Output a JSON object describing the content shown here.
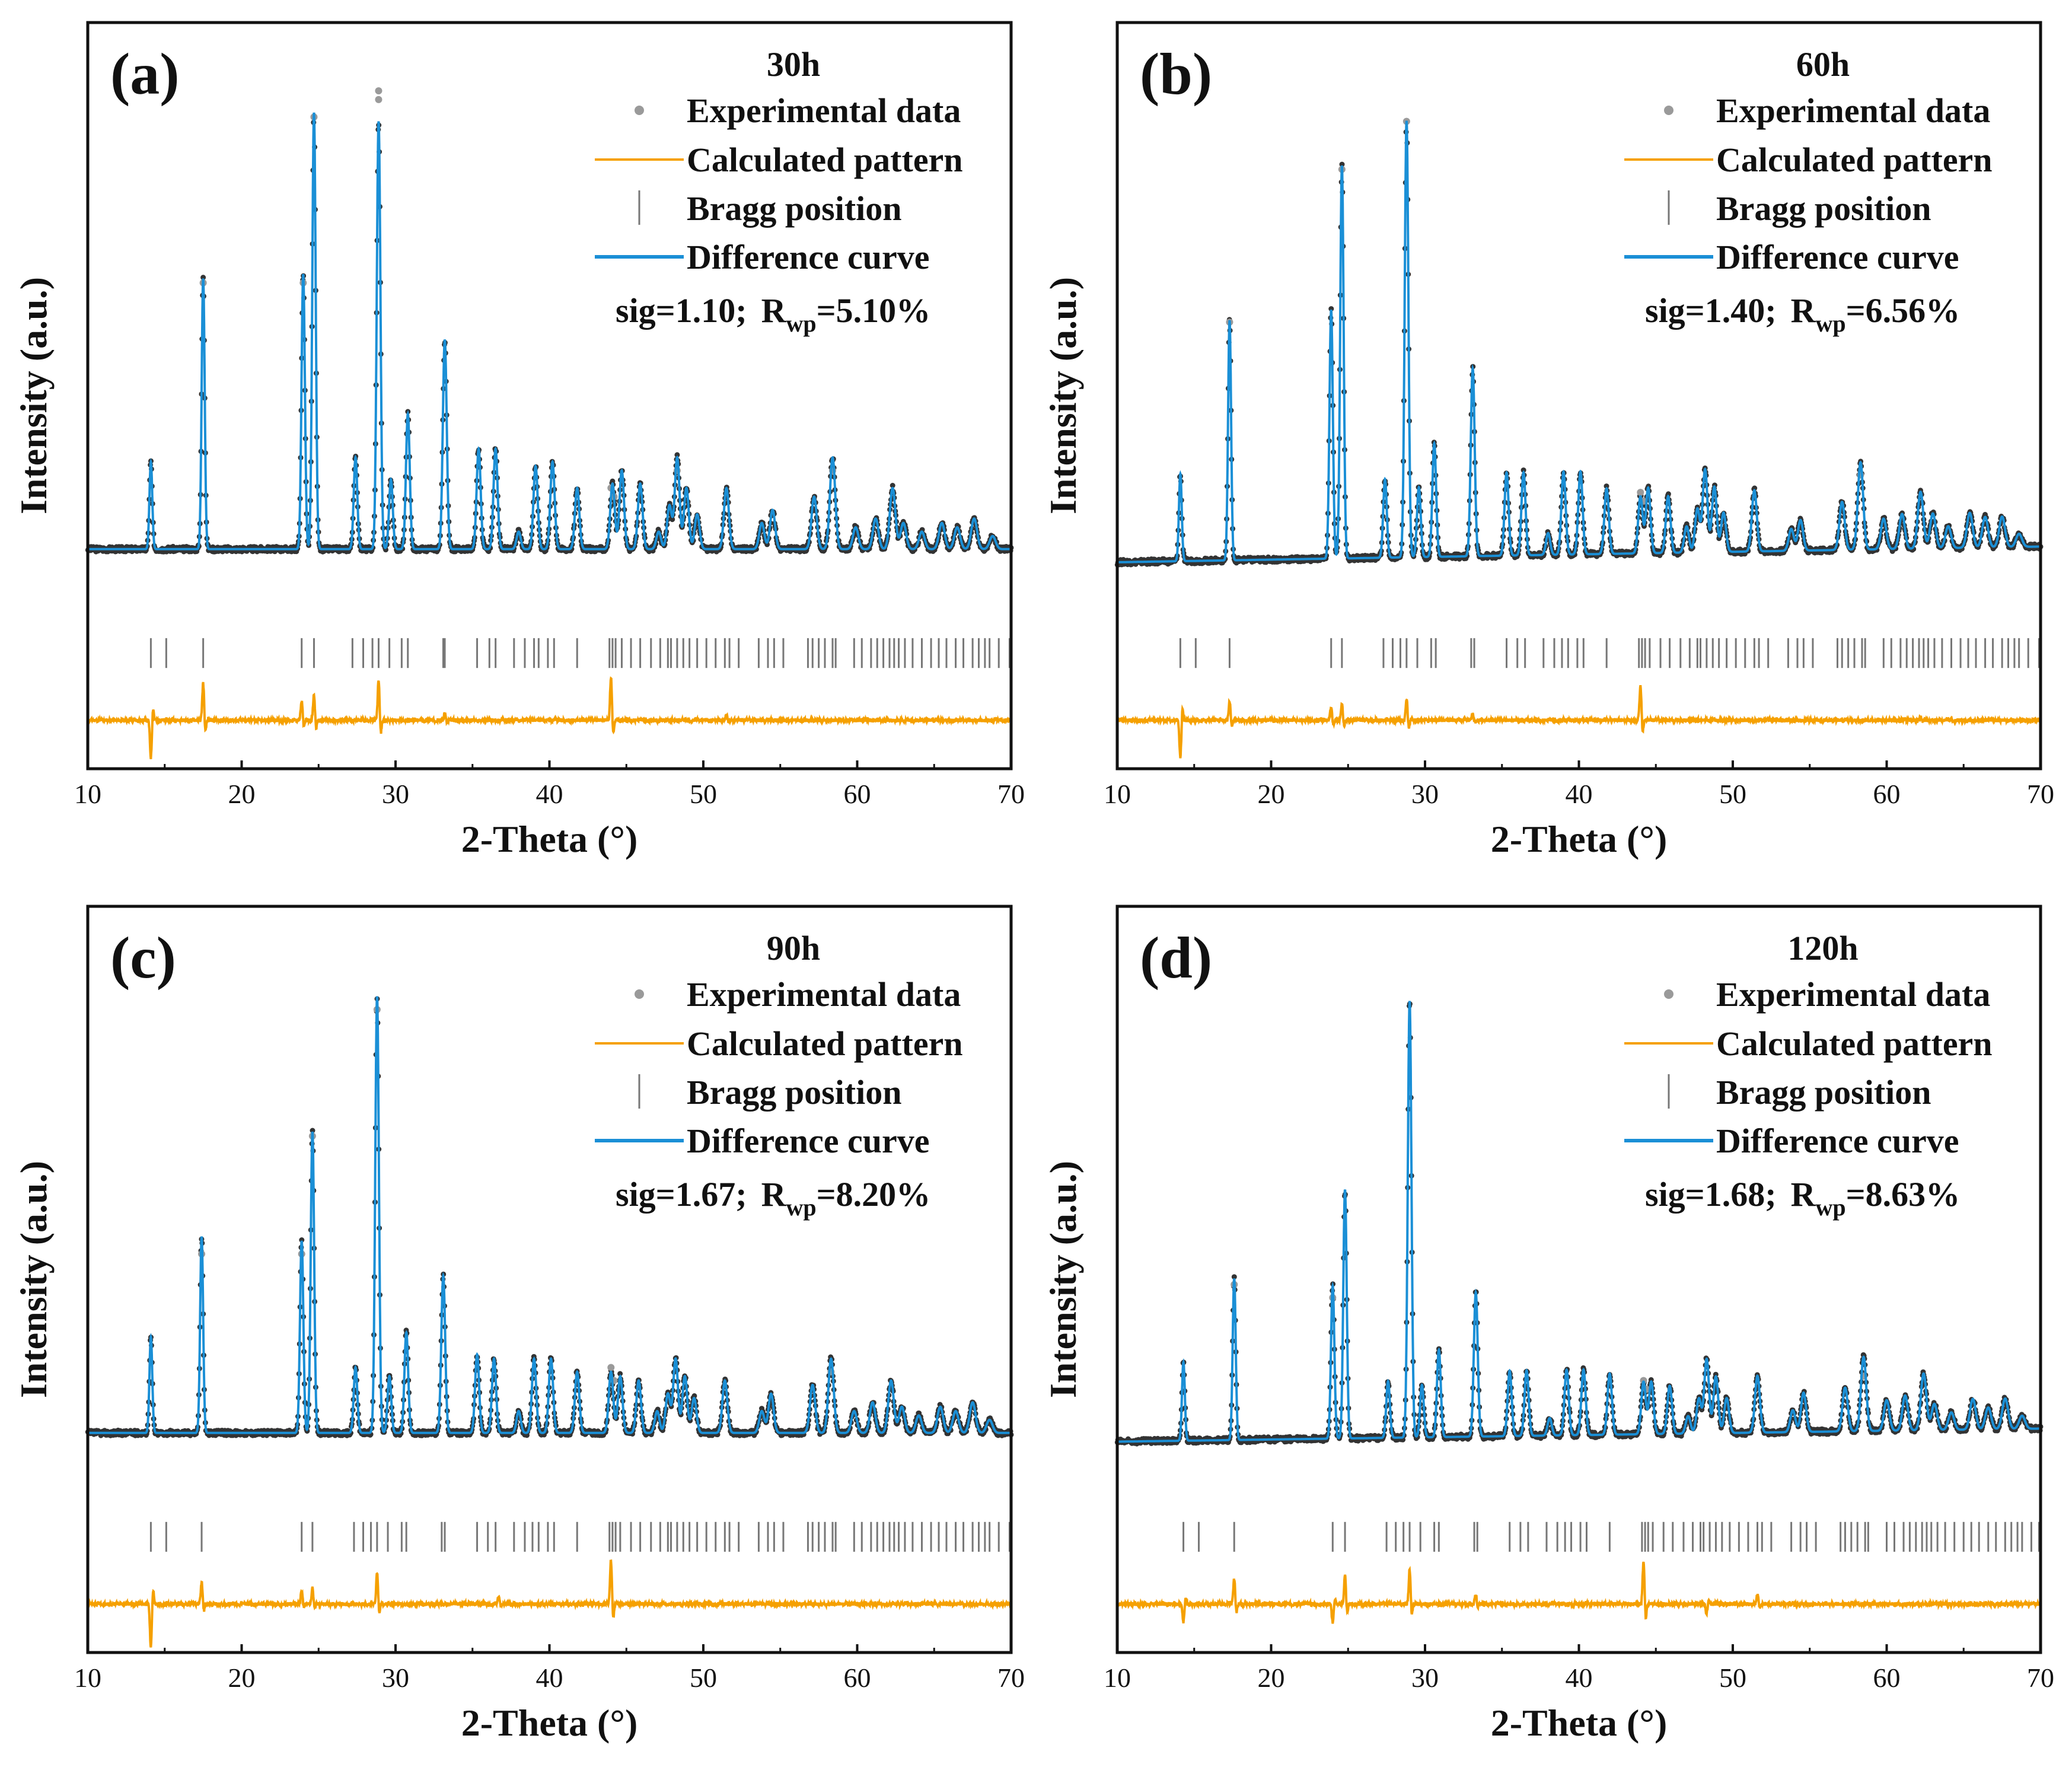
{
  "colors": {
    "experimental": "#333333",
    "experimental_outlier": "#9a9a9a",
    "calculated": "#1a8fd6",
    "difference": "#f5a000",
    "bragg": "#777777",
    "axes": "#111111"
  },
  "chart_data": [
    {
      "type": "line",
      "panel_label": "(a)",
      "legend_title": "30h",
      "legend": [
        "Experimental data",
        "Calculated pattern",
        "Bragg position",
        "Difference curve"
      ],
      "sig_text": "sig=1.10;",
      "rwp_text": "R",
      "rwp_sub": "wp",
      "rwp_value_text": "=5.10%",
      "xlabel": "2-Theta (°)",
      "ylabel": "Intensity (a.u.)",
      "xlim": [
        10,
        70
      ],
      "xticks": [
        "10",
        "20",
        "30",
        "40",
        "50",
        "60",
        "70"
      ],
      "baseline": 0.05,
      "baseline_slope": 0.0,
      "peaks": [
        [
          14.1,
          0.2
        ],
        [
          17.5,
          0.62
        ],
        [
          24.0,
          0.63
        ],
        [
          24.7,
          1.0
        ],
        [
          27.4,
          0.21
        ],
        [
          28.9,
          0.98
        ],
        [
          29.7,
          0.16
        ],
        [
          30.8,
          0.31
        ],
        [
          33.2,
          0.48
        ],
        [
          35.4,
          0.23
        ],
        [
          36.5,
          0.23
        ],
        [
          38.0,
          0.04
        ],
        [
          39.1,
          0.19
        ],
        [
          40.2,
          0.2
        ],
        [
          41.8,
          0.14
        ],
        [
          44.1,
          0.15
        ],
        [
          44.7,
          0.18
        ],
        [
          45.9,
          0.15
        ],
        [
          47.1,
          0.04
        ],
        [
          47.8,
          0.1
        ],
        [
          48.3,
          0.21
        ],
        [
          48.9,
          0.14
        ],
        [
          49.6,
          0.08
        ],
        [
          51.5,
          0.14
        ],
        [
          53.8,
          0.06
        ],
        [
          54.5,
          0.09
        ],
        [
          57.2,
          0.12
        ],
        [
          58.4,
          0.21
        ],
        [
          59.9,
          0.05
        ],
        [
          61.2,
          0.07
        ],
        [
          62.3,
          0.14
        ],
        [
          63.0,
          0.06
        ],
        [
          64.2,
          0.04
        ],
        [
          65.5,
          0.06
        ],
        [
          66.5,
          0.05
        ],
        [
          67.6,
          0.07
        ],
        [
          68.8,
          0.03
        ]
      ],
      "outliers": [
        [
          17.5,
          0.66
        ],
        [
          28.9,
          1.1
        ],
        [
          28.9,
          1.08
        ],
        [
          24.0,
          0.66
        ],
        [
          24.7,
          1.04
        ],
        [
          44.0,
          0.19
        ],
        [
          44.2,
          0.17
        ],
        [
          48.3,
          0.23
        ],
        [
          58.4,
          0.23
        ]
      ],
      "bragg": [
        14.1,
        15.1,
        17.5,
        23.9,
        24.7,
        27.2,
        27.9,
        28.5,
        28.9,
        29.6,
        30.4,
        30.8,
        33.1,
        33.2,
        35.3,
        36.1,
        36.5,
        37.7,
        38.4,
        39.0,
        39.3,
        39.9,
        40.3,
        41.8,
        43.9,
        44.1,
        44.3,
        44.7,
        45.3,
        45.9,
        46.6,
        47.2,
        47.7,
        47.9,
        48.3,
        48.7,
        49.1,
        49.6,
        50.2,
        50.8,
        51.4,
        51.7,
        52.3,
        53.6,
        54.2,
        54.6,
        55.2,
        56.8,
        57.1,
        57.5,
        57.9,
        58.4,
        58.6,
        59.8,
        60.3,
        60.9,
        61.3,
        61.7,
        62.1,
        62.4,
        62.7,
        63.1,
        63.6,
        64.2,
        64.8,
        65.3,
        65.8,
        66.4,
        66.9,
        67.5,
        67.9,
        68.3,
        68.6,
        69.2,
        69.9
      ],
      "diff_features": [
        [
          14.1,
          -0.12
        ],
        [
          17.5,
          0.12
        ],
        [
          23.9,
          0.06
        ],
        [
          24.7,
          0.08
        ],
        [
          28.9,
          0.13
        ],
        [
          44.0,
          0.14
        ],
        [
          33.2,
          0.02
        ],
        [
          51.5,
          0.02
        ]
      ]
    },
    {
      "type": "line",
      "panel_label": "(b)",
      "legend_title": "60h",
      "legend": [
        "Experimental data",
        "Calculated pattern",
        "Bragg position",
        "Difference curve"
      ],
      "sig_text": "sig=1.40;",
      "rwp_text": "R",
      "rwp_sub": "wp",
      "rwp_value_text": "=6.56%",
      "xlabel": "2-Theta (°)",
      "ylabel": "Intensity (a.u.)",
      "xlim": [
        10,
        70
      ],
      "xticks": [
        "10",
        "20",
        "30",
        "40",
        "50",
        "60",
        "70"
      ],
      "baseline": 0.02,
      "baseline_slope": 0.0006,
      "peaks": [
        [
          14.1,
          0.2
        ],
        [
          17.3,
          0.55
        ],
        [
          23.9,
          0.57
        ],
        [
          24.6,
          0.9
        ],
        [
          27.4,
          0.18
        ],
        [
          28.8,
          1.0
        ],
        [
          29.6,
          0.16
        ],
        [
          30.6,
          0.26
        ],
        [
          33.1,
          0.43
        ],
        [
          35.3,
          0.19
        ],
        [
          36.4,
          0.19
        ],
        [
          38.0,
          0.05
        ],
        [
          39.0,
          0.19
        ],
        [
          40.1,
          0.19
        ],
        [
          41.8,
          0.15
        ],
        [
          44.0,
          0.13
        ],
        [
          44.5,
          0.15
        ],
        [
          45.8,
          0.13
        ],
        [
          47.0,
          0.06
        ],
        [
          47.7,
          0.1
        ],
        [
          48.2,
          0.19
        ],
        [
          48.8,
          0.15
        ],
        [
          49.4,
          0.09
        ],
        [
          51.4,
          0.14
        ],
        [
          53.8,
          0.05
        ],
        [
          54.4,
          0.07
        ],
        [
          57.1,
          0.11
        ],
        [
          58.3,
          0.2
        ],
        [
          59.8,
          0.07
        ],
        [
          61.0,
          0.08
        ],
        [
          62.2,
          0.13
        ],
        [
          63.0,
          0.08
        ],
        [
          64.0,
          0.05
        ],
        [
          65.4,
          0.08
        ],
        [
          66.4,
          0.07
        ],
        [
          67.5,
          0.07
        ],
        [
          68.6,
          0.03
        ]
      ],
      "outliers": [
        [
          28.8,
          1.03
        ],
        [
          24.6,
          0.92
        ],
        [
          17.3,
          0.57
        ],
        [
          44.0,
          0.18
        ],
        [
          44.2,
          0.16
        ],
        [
          58.3,
          0.22
        ]
      ],
      "bragg": [
        14.1,
        15.1,
        17.3,
        23.9,
        24.6,
        27.3,
        27.9,
        28.4,
        28.8,
        29.5,
        30.4,
        30.7,
        33.0,
        33.2,
        35.3,
        36.0,
        36.5,
        37.7,
        38.4,
        38.9,
        39.3,
        39.9,
        40.3,
        41.8,
        43.9,
        44.1,
        44.3,
        44.6,
        45.3,
        45.9,
        46.6,
        47.2,
        47.7,
        47.9,
        48.3,
        48.7,
        49.1,
        49.6,
        50.2,
        50.8,
        51.4,
        51.7,
        52.3,
        53.6,
        54.2,
        54.6,
        55.2,
        56.8,
        57.1,
        57.5,
        57.9,
        58.4,
        58.6,
        59.8,
        60.3,
        60.9,
        61.3,
        61.7,
        62.1,
        62.4,
        62.7,
        63.1,
        63.6,
        64.2,
        64.8,
        65.3,
        65.8,
        66.4,
        66.9,
        67.5,
        67.9,
        68.3,
        68.6,
        69.2,
        69.9
      ],
      "diff_features": [
        [
          14.1,
          -0.12
        ],
        [
          17.3,
          0.06
        ],
        [
          23.9,
          0.04
        ],
        [
          24.6,
          0.05
        ],
        [
          28.8,
          0.07
        ],
        [
          44.0,
          0.11
        ],
        [
          33.1,
          0.02
        ],
        [
          62.2,
          0.01
        ]
      ]
    },
    {
      "type": "line",
      "panel_label": "(c)",
      "legend_title": "90h",
      "legend": [
        "Experimental data",
        "Calculated pattern",
        "Bragg position",
        "Difference curve"
      ],
      "sig_text": "sig=1.67;",
      "rwp_text": "R",
      "rwp_sub": "wp",
      "rwp_value_text": "=8.20%",
      "xlabel": "2-Theta (°)",
      "ylabel": "Intensity (a.u.)",
      "xlim": [
        10,
        70
      ],
      "xticks": [
        "10",
        "20",
        "30",
        "40",
        "50",
        "60",
        "70"
      ],
      "baseline": 0.05,
      "baseline_slope": 0.0,
      "peaks": [
        [
          14.1,
          0.22
        ],
        [
          17.4,
          0.45
        ],
        [
          23.9,
          0.44
        ],
        [
          24.6,
          0.69
        ],
        [
          27.4,
          0.15
        ],
        [
          28.8,
          1.0
        ],
        [
          29.6,
          0.13
        ],
        [
          30.7,
          0.23
        ],
        [
          33.1,
          0.36
        ],
        [
          35.3,
          0.18
        ],
        [
          36.4,
          0.17
        ],
        [
          38.0,
          0.05
        ],
        [
          39.0,
          0.17
        ],
        [
          40.1,
          0.17
        ],
        [
          41.8,
          0.14
        ],
        [
          44.0,
          0.14
        ],
        [
          44.6,
          0.13
        ],
        [
          45.8,
          0.12
        ],
        [
          47.0,
          0.05
        ],
        [
          47.7,
          0.09
        ],
        [
          48.2,
          0.17
        ],
        [
          48.8,
          0.13
        ],
        [
          49.4,
          0.08
        ],
        [
          51.4,
          0.12
        ],
        [
          53.8,
          0.05
        ],
        [
          54.4,
          0.09
        ],
        [
          57.1,
          0.11
        ],
        [
          58.3,
          0.17
        ],
        [
          59.8,
          0.05
        ],
        [
          61.0,
          0.07
        ],
        [
          62.2,
          0.12
        ],
        [
          62.9,
          0.06
        ],
        [
          64.0,
          0.04
        ],
        [
          65.4,
          0.06
        ],
        [
          66.4,
          0.05
        ],
        [
          67.5,
          0.07
        ],
        [
          68.6,
          0.03
        ]
      ],
      "outliers": [
        [
          28.8,
          1.02
        ],
        [
          24.6,
          0.73
        ],
        [
          17.4,
          0.46
        ],
        [
          23.9,
          0.46
        ],
        [
          44.0,
          0.2
        ],
        [
          44.2,
          0.17
        ],
        [
          58.3,
          0.19
        ]
      ],
      "bragg": [
        14.1,
        15.1,
        17.4,
        23.9,
        24.6,
        27.3,
        27.9,
        28.4,
        28.8,
        29.5,
        30.4,
        30.7,
        33.0,
        33.2,
        35.3,
        36.0,
        36.5,
        37.7,
        38.4,
        38.9,
        39.3,
        39.9,
        40.3,
        41.8,
        43.9,
        44.1,
        44.3,
        44.6,
        45.3,
        45.9,
        46.6,
        47.2,
        47.7,
        47.9,
        48.3,
        48.7,
        49.1,
        49.6,
        50.2,
        50.8,
        51.4,
        51.7,
        52.3,
        53.6,
        54.2,
        54.6,
        55.2,
        56.8,
        57.1,
        57.5,
        57.9,
        58.4,
        58.6,
        59.8,
        60.3,
        60.9,
        61.3,
        61.7,
        62.1,
        62.4,
        62.7,
        63.1,
        63.6,
        64.2,
        64.8,
        65.3,
        65.8,
        66.4,
        66.9,
        67.5,
        67.9,
        68.3,
        68.6,
        69.2,
        69.9
      ],
      "diff_features": [
        [
          14.1,
          -0.14
        ],
        [
          17.4,
          0.07
        ],
        [
          23.9,
          0.04
        ],
        [
          24.6,
          0.05
        ],
        [
          28.8,
          0.1
        ],
        [
          44.0,
          0.14
        ],
        [
          36.7,
          0.02
        ]
      ]
    },
    {
      "type": "line",
      "panel_label": "(d)",
      "legend_title": "120h",
      "legend": [
        "Experimental data",
        "Calculated pattern",
        "Bragg position",
        "Difference curve"
      ],
      "sig_text": "sig=1.68;",
      "rwp_text": "R",
      "rwp_sub": "wp",
      "rwp_value_text": "=8.63%",
      "xlabel": "2-Theta (°)",
      "ylabel": "Intensity (a.u.)",
      "xlim": [
        10,
        70
      ],
      "xticks": [
        "10",
        "20",
        "30",
        "40",
        "50",
        "60",
        "70"
      ],
      "baseline": 0.03,
      "baseline_slope": 0.0005,
      "peaks": [
        [
          14.3,
          0.18
        ],
        [
          17.6,
          0.37
        ],
        [
          24.0,
          0.35
        ],
        [
          24.8,
          0.57
        ],
        [
          27.6,
          0.13
        ],
        [
          29.0,
          1.0
        ],
        [
          29.8,
          0.12
        ],
        [
          30.9,
          0.2
        ],
        [
          33.3,
          0.33
        ],
        [
          35.5,
          0.15
        ],
        [
          36.6,
          0.15
        ],
        [
          38.1,
          0.04
        ],
        [
          39.2,
          0.15
        ],
        [
          40.3,
          0.15
        ],
        [
          42.0,
          0.14
        ],
        [
          44.2,
          0.12
        ],
        [
          44.7,
          0.12
        ],
        [
          45.9,
          0.11
        ],
        [
          47.1,
          0.04
        ],
        [
          47.8,
          0.08
        ],
        [
          48.3,
          0.17
        ],
        [
          48.9,
          0.13
        ],
        [
          49.6,
          0.08
        ],
        [
          51.6,
          0.13
        ],
        [
          53.9,
          0.05
        ],
        [
          54.6,
          0.09
        ],
        [
          57.3,
          0.1
        ],
        [
          58.5,
          0.17
        ],
        [
          60.0,
          0.07
        ],
        [
          61.2,
          0.08
        ],
        [
          62.4,
          0.13
        ],
        [
          63.1,
          0.06
        ],
        [
          64.2,
          0.04
        ],
        [
          65.6,
          0.07
        ],
        [
          66.6,
          0.05
        ],
        [
          67.7,
          0.07
        ],
        [
          68.8,
          0.03
        ]
      ],
      "outliers": [
        [
          17.6,
          0.39
        ],
        [
          24.0,
          0.36
        ],
        [
          44.2,
          0.17
        ],
        [
          44.4,
          0.15
        ],
        [
          58.5,
          0.18
        ]
      ],
      "bragg": [
        14.3,
        15.3,
        17.6,
        24.0,
        24.8,
        27.5,
        28.1,
        28.6,
        29.0,
        29.7,
        30.6,
        30.9,
        33.2,
        33.4,
        35.5,
        36.2,
        36.7,
        37.9,
        38.6,
        39.1,
        39.5,
        40.1,
        40.5,
        42.0,
        44.1,
        44.3,
        44.5,
        44.8,
        45.5,
        46.1,
        46.8,
        47.4,
        47.9,
        48.1,
        48.5,
        48.9,
        49.3,
        49.8,
        50.4,
        51.0,
        51.6,
        51.9,
        52.5,
        53.8,
        54.4,
        54.8,
        55.4,
        57.0,
        57.3,
        57.7,
        58.1,
        58.6,
        58.8,
        60.0,
        60.5,
        61.1,
        61.5,
        61.9,
        62.3,
        62.6,
        62.9,
        63.3,
        63.8,
        64.4,
        65.0,
        65.5,
        66.0,
        66.6,
        67.1,
        67.7,
        68.1,
        68.5,
        68.8,
        69.4,
        69.9
      ],
      "diff_features": [
        [
          14.3,
          -0.06
        ],
        [
          17.6,
          0.08
        ],
        [
          24.0,
          -0.06
        ],
        [
          24.8,
          0.09
        ],
        [
          29.0,
          0.11
        ],
        [
          44.2,
          0.14
        ],
        [
          33.3,
          0.03
        ],
        [
          48.3,
          -0.03
        ],
        [
          51.6,
          0.03
        ]
      ]
    }
  ]
}
